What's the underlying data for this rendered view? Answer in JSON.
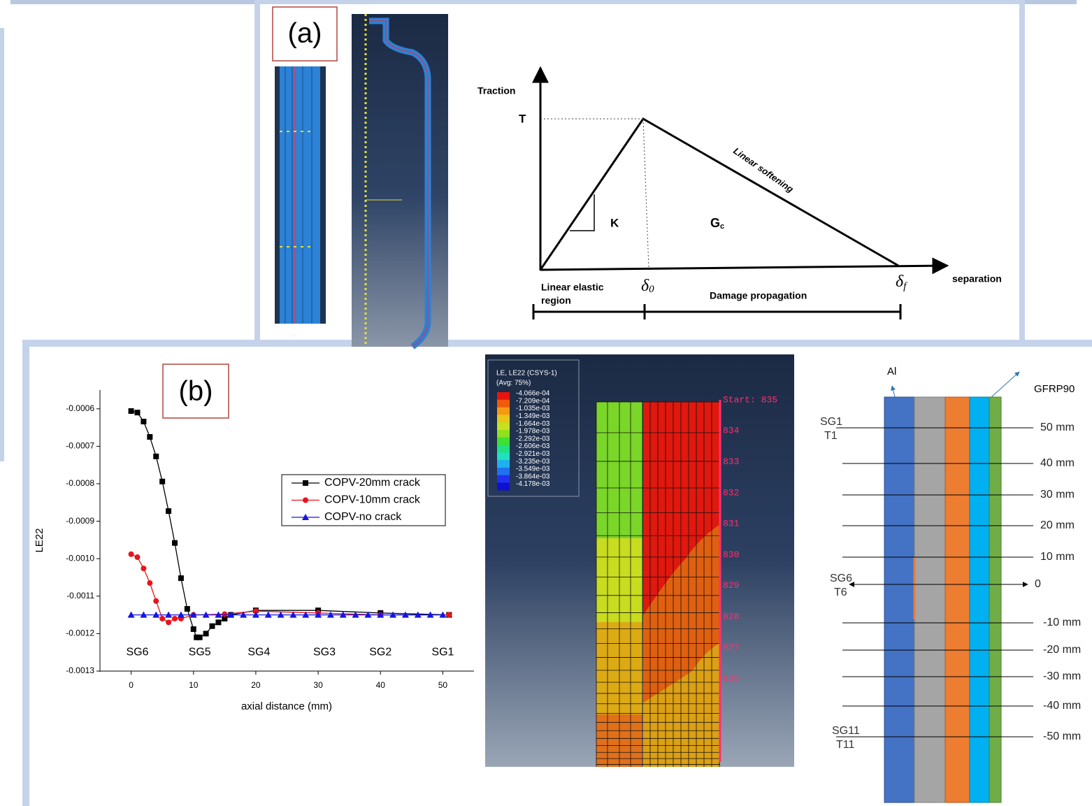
{
  "panel_a": {
    "label": "(a)",
    "y_axis": "Traction",
    "peak": "T",
    "stiffness": "K",
    "energy": "G",
    "energy_sub": "c",
    "softening": "Linear softening",
    "x_axis": "separation",
    "region_elastic": [
      "Linear elastic",
      "region"
    ],
    "delta0": "δ",
    "delta0_sub": "0",
    "damage": "Damage propagation",
    "deltaf": "δ",
    "deltaf_sub": "f"
  },
  "chart_data": {
    "type": "line",
    "panel_label": "(b)",
    "y_label": "LE22",
    "x_label": "axial distance (mm)",
    "xlim": [
      -5,
      55
    ],
    "xticks": [
      0,
      10,
      20,
      30,
      40,
      50
    ],
    "ylim": [
      -0.0013,
      -0.00055
    ],
    "yticks": [
      -0.0006,
      -0.0007,
      -0.0008,
      -0.0009,
      {
        "value": -0.001,
        "label": "-0.0010"
      },
      -0.0011,
      -0.0012,
      -0.0013
    ],
    "annotations": [
      {
        "text": "SG6",
        "x": 1
      },
      {
        "text": "SG5",
        "x": 11
      },
      {
        "text": "SG4",
        "x": 20.5
      },
      {
        "text": "SG3",
        "x": 31
      },
      {
        "text": "SG2",
        "x": 40
      },
      {
        "text": "SG1",
        "x": 50
      }
    ],
    "series": [
      {
        "name": "COPV-20mm crack",
        "color": "#000000",
        "marker": "square",
        "x": [
          0,
          1,
          2,
          3,
          4,
          5,
          6,
          7,
          8,
          9,
          10,
          10.5,
          11,
          12,
          13,
          14,
          15,
          16,
          20,
          30,
          40,
          51
        ],
        "values": [
          -0.000606,
          -0.00061,
          -0.000634,
          -0.000675,
          -0.000727,
          -0.000794,
          -0.000873,
          -0.000958,
          -0.001052,
          -0.001134,
          -0.001188,
          -0.00121,
          -0.00121,
          -0.0012,
          -0.00118,
          -0.00117,
          -0.00116,
          -0.00115,
          -0.001138,
          -0.001138,
          -0.001145,
          -0.00115
        ]
      },
      {
        "name": "COPV-10mm crack",
        "color": "#e8141b",
        "marker": "circle",
        "x": [
          0,
          1,
          2,
          3,
          4,
          5,
          6,
          7,
          8,
          10,
          15,
          20,
          30,
          40,
          51
        ],
        "values": [
          -0.000988,
          -0.000996,
          -0.001026,
          -0.001065,
          -0.001113,
          -0.00116,
          -0.00117,
          -0.00116,
          -0.00116,
          -0.00115,
          -0.001148,
          -0.00114,
          -0.001145,
          -0.00115,
          -0.00115
        ]
      },
      {
        "name": "COPV-no crack",
        "color": "#1414e6",
        "marker": "triangle",
        "x": [
          0,
          2,
          4,
          6,
          8,
          10,
          12,
          14,
          16,
          18,
          20,
          22,
          24,
          26,
          28,
          30,
          32,
          34,
          36,
          38,
          40,
          42,
          44,
          46,
          48,
          50
        ],
        "values": [
          -0.00115,
          -0.00115,
          -0.00115,
          -0.00115,
          -0.00115,
          -0.00115,
          -0.00115,
          -0.00115,
          -0.00115,
          -0.00115,
          -0.00115,
          -0.00115,
          -0.00115,
          -0.00115,
          -0.00115,
          -0.00115,
          -0.00115,
          -0.00115,
          -0.00115,
          -0.00115,
          -0.00115,
          -0.00115,
          -0.00115,
          -0.00115,
          -0.00115,
          -0.00115
        ]
      }
    ]
  },
  "contour": {
    "title": "LE, LE22 (CSYS-1)",
    "subtitle": "(Avg: 75%)",
    "levels": [
      "-4.066e-04",
      "-7.209e-04",
      "-1.035e-03",
      "-1.349e-03",
      "-1.664e-03",
      "-1.978e-03",
      "-2.292e-03",
      "-2.606e-03",
      "-2.921e-03",
      "-3.235e-03",
      "-3.549e-03",
      "-3.864e-03",
      "-4.178e-03"
    ],
    "colors": [
      "#e8140c",
      "#f05a0a",
      "#f49a10",
      "#e8c818",
      "#c8e020",
      "#90e020",
      "#40e030",
      "#20e080",
      "#20e0c0",
      "#20b0f0",
      "#2070f0",
      "#2030f0",
      "#1010d0"
    ],
    "node_labels": [
      "Start: 835",
      "834",
      "833",
      "832",
      "831",
      "830",
      "829",
      "828",
      "827",
      "826"
    ]
  },
  "layers": {
    "top_labels": [
      "Al",
      "GFRP90"
    ],
    "gauges": [
      {
        "name": "SG1",
        "t": "T1"
      },
      {
        "name": "SG6",
        "t": "T6"
      },
      {
        "name": "SG11",
        "t": "T11"
      }
    ],
    "positions": [
      "50 mm",
      "40 mm",
      "30 mm",
      "20 mm",
      "10 mm",
      "0",
      "-10 mm",
      "-20 mm",
      "-30 mm",
      "-40 mm",
      "-50 mm"
    ]
  }
}
